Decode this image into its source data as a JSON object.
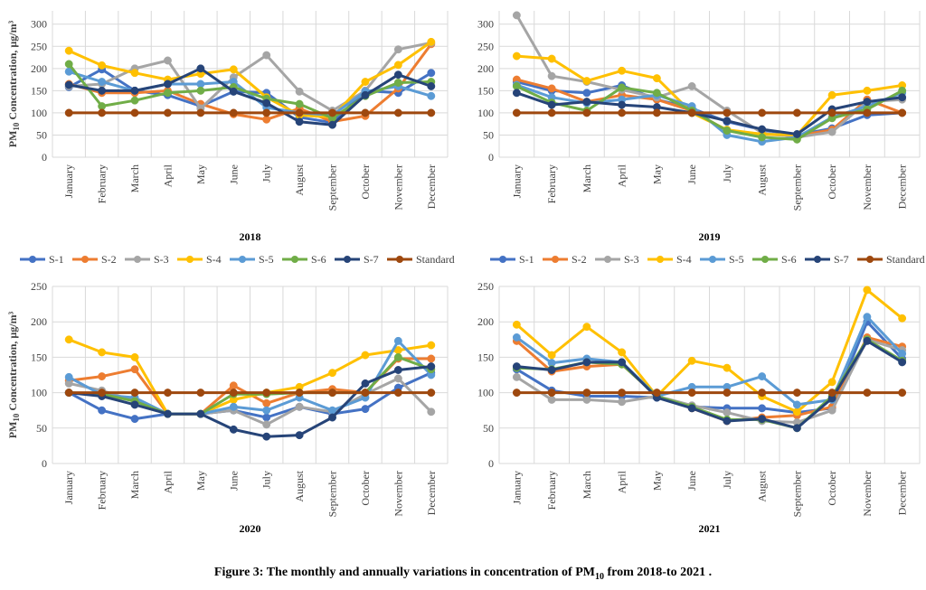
{
  "caption": {
    "prefix": "Figure 3: The monthly and annually variations in concentration of PM",
    "subscript": "10",
    "suffix": " from 2018-to 2021 ."
  },
  "legend_entries": [
    "S-1",
    "S-2",
    "S-3",
    "S-4",
    "S-5",
    "S-6",
    "S-7",
    "Standard"
  ],
  "colors": {
    "S-1": "#4472C4",
    "S-2": "#ED7D31",
    "S-3": "#A5A5A5",
    "S-4": "#FFC000",
    "S-5": "#5B9BD5",
    "S-6": "#70AD47",
    "S-7": "#264478",
    "Standard": "#9E480E",
    "grid": "#d9d9d9",
    "axis_text": "#404040"
  },
  "chart_data": [
    {
      "type": "line",
      "title": "2018",
      "ylabel": "PM10 Concentration, µg/m³",
      "ylabel_parts": {
        "main": "PM",
        "sub": "10",
        "rest": " Concentration, µg/m³"
      },
      "ylim": [
        0,
        330
      ],
      "yticks": [
        0,
        50,
        100,
        150,
        200,
        250,
        300
      ],
      "grid": "vertical",
      "legend": "bottom",
      "categories": [
        "January",
        "February",
        "March",
        "April",
        "May",
        "June",
        "July",
        "August",
        "September",
        "October",
        "November",
        "December"
      ],
      "series": [
        {
          "name": "S-1",
          "values": [
            158,
            198,
            150,
            140,
            115,
            148,
            145,
            90,
            78,
            150,
            145,
            190
          ]
        },
        {
          "name": "S-2",
          "values": [
            165,
            145,
            145,
            150,
            120,
            97,
            85,
            110,
            80,
            93,
            155,
            255
          ]
        },
        {
          "name": "S-3",
          "values": [
            160,
            165,
            200,
            218,
            110,
            180,
            230,
            148,
            105,
            150,
            243,
            258
          ]
        },
        {
          "name": "S-4",
          "values": [
            240,
            207,
            190,
            175,
            188,
            198,
            135,
            95,
            90,
            170,
            208,
            260
          ]
        },
        {
          "name": "S-5",
          "values": [
            193,
            170,
            150,
            165,
            165,
            170,
            112,
            100,
            95,
            148,
            160,
            138
          ]
        },
        {
          "name": "S-6",
          "values": [
            210,
            115,
            128,
            145,
            150,
            158,
            132,
            120,
            88,
            138,
            168,
            170
          ]
        },
        {
          "name": "S-7",
          "values": [
            163,
            150,
            150,
            165,
            200,
            148,
            122,
            80,
            73,
            140,
            186,
            160
          ]
        },
        {
          "name": "Standard",
          "values": [
            100,
            100,
            100,
            100,
            100,
            100,
            100,
            100,
            100,
            100,
            100,
            100
          ]
        }
      ]
    },
    {
      "type": "line",
      "title": "2019",
      "ylabel": "",
      "ylim": [
        0,
        330
      ],
      "yticks": [
        0,
        50,
        100,
        150,
        200,
        250,
        300
      ],
      "grid": "vertical",
      "legend": "bottom",
      "categories": [
        "January",
        "February",
        "March",
        "April",
        "May",
        "June",
        "July",
        "August",
        "September",
        "October",
        "November",
        "December"
      ],
      "series": [
        {
          "name": "S-1",
          "values": [
            170,
            150,
            145,
            162,
            130,
            110,
            80,
            62,
            50,
            65,
            95,
            100
          ]
        },
        {
          "name": "S-2",
          "values": [
            175,
            155,
            125,
            140,
            130,
            105,
            60,
            52,
            48,
            62,
            130,
            100
          ]
        },
        {
          "name": "S-3",
          "values": [
            320,
            183,
            170,
            152,
            135,
            160,
            105,
            55,
            45,
            57,
            125,
            130
          ]
        },
        {
          "name": "S-4",
          "values": [
            228,
            222,
            172,
            195,
            178,
            100,
            62,
            52,
            50,
            140,
            150,
            162
          ]
        },
        {
          "name": "S-5",
          "values": [
            163,
            135,
            122,
            130,
            140,
            115,
            50,
            35,
            45,
            90,
            115,
            145
          ]
        },
        {
          "name": "S-6",
          "values": [
            160,
            123,
            105,
            157,
            145,
            105,
            60,
            45,
            40,
            88,
            108,
            150
          ]
        },
        {
          "name": "S-7",
          "values": [
            145,
            118,
            125,
            118,
            113,
            100,
            82,
            63,
            52,
            108,
            125,
            135
          ]
        },
        {
          "name": "Standard",
          "values": [
            100,
            100,
            100,
            100,
            100,
            100,
            100,
            100,
            100,
            100,
            100,
            100
          ]
        }
      ]
    },
    {
      "type": "line",
      "title": "2020",
      "ylabel": "PM10 Concentration, µg/m³",
      "ylabel_parts": {
        "main": "PM",
        "sub": "10",
        "rest": " Concentration, µg/m³"
      },
      "ylim": [
        0,
        250
      ],
      "yticks": [
        0,
        50,
        100,
        150,
        200,
        250
      ],
      "grid": "vertical",
      "legend": "top",
      "categories": [
        "January",
        "February",
        "March",
        "April",
        "May",
        "June",
        "July",
        "August",
        "September",
        "October",
        "November",
        "December"
      ],
      "series": [
        {
          "name": "S-1",
          "values": [
            100,
            75,
            63,
            70,
            70,
            75,
            65,
            80,
            70,
            77,
            107,
            128
          ]
        },
        {
          "name": "S-2",
          "values": [
            117,
            123,
            133,
            70,
            70,
            110,
            85,
            100,
            105,
            100,
            148,
            148
          ]
        },
        {
          "name": "S-3",
          "values": [
            113,
            103,
            88,
            70,
            70,
            75,
            55,
            80,
            73,
            98,
            120,
            73
          ]
        },
        {
          "name": "S-4",
          "values": [
            175,
            157,
            150,
            70,
            70,
            90,
            100,
            108,
            128,
            153,
            160,
            167
          ]
        },
        {
          "name": "S-5",
          "values": [
            122,
            97,
            93,
            70,
            70,
            80,
            75,
            93,
            75,
            93,
            173,
            125
          ]
        },
        {
          "name": "S-6",
          "values": [
            100,
            98,
            88,
            70,
            70,
            98,
            98,
            100,
            100,
            100,
            150,
            133
          ]
        },
        {
          "name": "S-7",
          "values": [
            100,
            95,
            83,
            70,
            70,
            48,
            38,
            40,
            65,
            113,
            132,
            137
          ]
        },
        {
          "name": "Standard",
          "values": [
            100,
            100,
            100,
            100,
            100,
            100,
            100,
            100,
            100,
            100,
            100,
            100
          ]
        }
      ]
    },
    {
      "type": "line",
      "title": "2021",
      "ylabel": "",
      "ylim": [
        0,
        250
      ],
      "yticks": [
        0,
        50,
        100,
        150,
        200,
        250
      ],
      "grid": "vertical",
      "legend": "top",
      "categories": [
        "January",
        "February",
        "March",
        "April",
        "May",
        "June",
        "July",
        "August",
        "September",
        "October",
        "November",
        "December"
      ],
      "series": [
        {
          "name": "S-1",
          "values": [
            133,
            103,
            95,
            95,
            93,
            80,
            78,
            78,
            72,
            78,
            200,
            148
          ]
        },
        {
          "name": "S-2",
          "values": [
            173,
            130,
            137,
            140,
            95,
            78,
            60,
            65,
            68,
            80,
            178,
            165
          ]
        },
        {
          "name": "S-3",
          "values": [
            122,
            90,
            90,
            87,
            95,
            82,
            72,
            60,
            58,
            75,
            175,
            160
          ]
        },
        {
          "name": "S-4",
          "values": [
            196,
            153,
            193,
            157,
            95,
            145,
            135,
            95,
            73,
            115,
            245,
            205
          ]
        },
        {
          "name": "S-5",
          "values": [
            178,
            142,
            148,
            143,
            95,
            108,
            108,
            123,
            83,
            90,
            207,
            155
          ]
        },
        {
          "name": "S-6",
          "values": [
            135,
            133,
            143,
            140,
            95,
            80,
            62,
            62,
            50,
            95,
            175,
            145
          ]
        },
        {
          "name": "S-7",
          "values": [
            137,
            132,
            143,
            143,
            93,
            78,
            60,
            63,
            50,
            92,
            173,
            143
          ]
        },
        {
          "name": "Standard",
          "values": [
            100,
            100,
            100,
            100,
            100,
            100,
            100,
            100,
            100,
            100,
            100,
            100
          ]
        }
      ]
    }
  ]
}
